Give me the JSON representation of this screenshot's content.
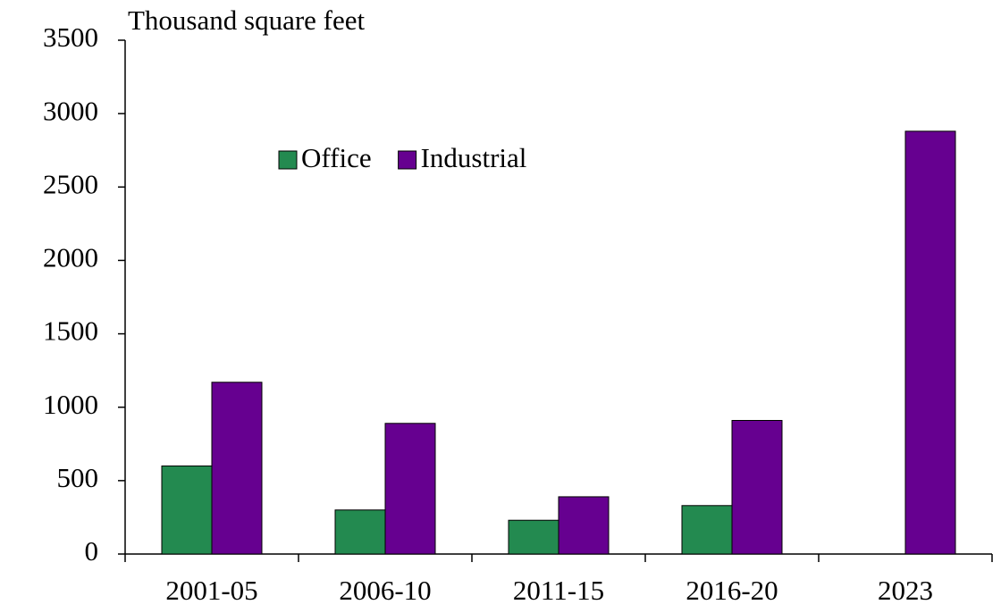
{
  "chart_data": {
    "type": "bar",
    "title": "Thousand square feet",
    "categories": [
      "2001-05",
      "2006-10",
      "2011-15",
      "2016-20",
      "2023"
    ],
    "series": [
      {
        "name": "Office",
        "color": "#238a50",
        "values": [
          600,
          300,
          230,
          330,
          null
        ]
      },
      {
        "name": "Industrial",
        "color": "#660090",
        "values": [
          1170,
          890,
          390,
          910,
          2880
        ]
      }
    ],
    "ylim": [
      0,
      3500
    ],
    "yticks": [
      0,
      500,
      1000,
      1500,
      2000,
      2500,
      3000,
      3500
    ],
    "grid": false
  }
}
